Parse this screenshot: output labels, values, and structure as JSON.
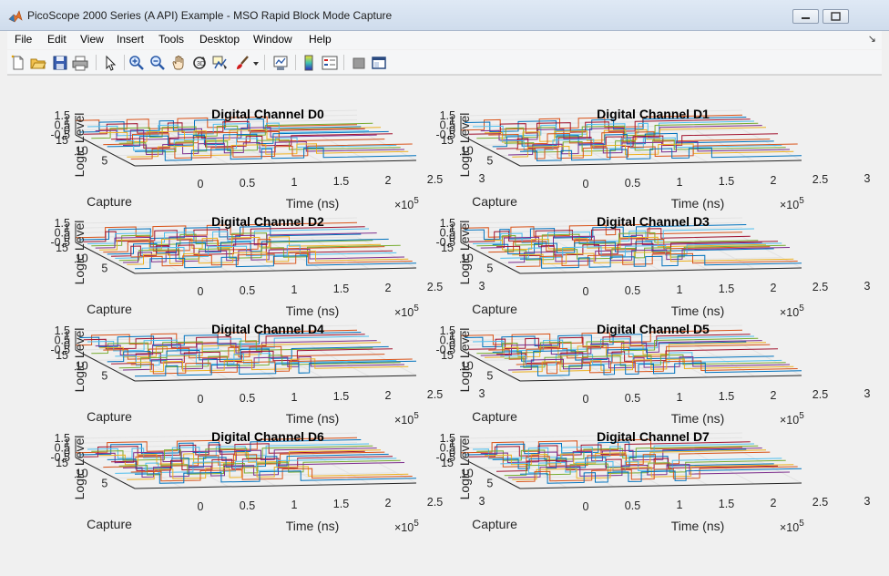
{
  "window": {
    "title": "PicoScope 2000 Series (A API) Example - MSO Rapid Block Mode Capture",
    "controls": [
      "minimize-icon",
      "maximize-icon",
      "close-icon"
    ]
  },
  "menu": [
    "File",
    "Edit",
    "View",
    "Insert",
    "Tools",
    "Desktop",
    "Window",
    "Help"
  ],
  "toolbar": [
    {
      "name": "new-figure-icon"
    },
    {
      "name": "open-file-icon"
    },
    {
      "name": "save-icon"
    },
    {
      "name": "print-icon"
    },
    {
      "name": "edit-plot-arrow-icon"
    },
    {
      "name": "zoom-in-icon"
    },
    {
      "name": "zoom-out-icon"
    },
    {
      "name": "pan-hand-icon"
    },
    {
      "name": "rotate-3d-icon"
    },
    {
      "name": "data-cursor-icon"
    },
    {
      "name": "brush-icon"
    },
    {
      "name": "brush-dropdown-icon"
    },
    {
      "name": "link-plot-icon"
    },
    {
      "name": "insert-colorbar-icon"
    },
    {
      "name": "insert-legend-icon"
    },
    {
      "name": "hide-plot-tools-icon"
    },
    {
      "name": "show-plot-tools-icon"
    }
  ],
  "chart_data": [
    {
      "type": "line",
      "title": "Digital Channel D0",
      "xlabel": "Time (ns)",
      "ylabel": "Capture",
      "zlabel": "Logic Level",
      "x_exponent": "×10",
      "x_exponent_power": "5",
      "xticks": [
        "0",
        "0.5",
        "1",
        "1.5",
        "2",
        "2.5",
        "3"
      ],
      "yticks": [
        "5",
        "10",
        "15"
      ],
      "zticks": [
        "-0.5",
        "0",
        "0.5",
        "1",
        "1.5"
      ],
      "xlim": [
        0,
        3
      ],
      "ylim": [
        0,
        15
      ],
      "zlim": [
        -0.5,
        1.5
      ],
      "grid": true,
      "view": "3d"
    },
    {
      "type": "line",
      "title": "Digital Channel D1",
      "xlabel": "Time (ns)",
      "ylabel": "Capture",
      "zlabel": "Logic Level",
      "x_exponent": "×10",
      "x_exponent_power": "5",
      "xticks": [
        "0",
        "0.5",
        "1",
        "1.5",
        "2",
        "2.5",
        "3"
      ],
      "yticks": [
        "5",
        "10",
        "15"
      ],
      "zticks": [
        "-0.5",
        "0",
        "0.5",
        "1",
        "1.5"
      ],
      "xlim": [
        0,
        3
      ],
      "ylim": [
        0,
        15
      ],
      "zlim": [
        -0.5,
        1.5
      ],
      "grid": true,
      "view": "3d"
    },
    {
      "type": "line",
      "title": "Digital Channel D2",
      "xlabel": "Time (ns)",
      "ylabel": "Capture",
      "zlabel": "Logic Level",
      "x_exponent": "×10",
      "x_exponent_power": "5",
      "xticks": [
        "0",
        "0.5",
        "1",
        "1.5",
        "2",
        "2.5",
        "3"
      ],
      "yticks": [
        "5",
        "10",
        "15"
      ],
      "zticks": [
        "-0.5",
        "0",
        "0.5",
        "1",
        "1.5"
      ],
      "xlim": [
        0,
        3
      ],
      "ylim": [
        0,
        15
      ],
      "zlim": [
        -0.5,
        1.5
      ],
      "grid": true,
      "view": "3d"
    },
    {
      "type": "line",
      "title": "Digital Channel D3",
      "xlabel": "Time (ns)",
      "ylabel": "Capture",
      "zlabel": "Logic Level",
      "x_exponent": "×10",
      "x_exponent_power": "5",
      "xticks": [
        "0",
        "0.5",
        "1",
        "1.5",
        "2",
        "2.5",
        "3"
      ],
      "yticks": [
        "5",
        "10",
        "15"
      ],
      "zticks": [
        "-0.5",
        "0",
        "0.5",
        "1",
        "1.5"
      ],
      "xlim": [
        0,
        3
      ],
      "ylim": [
        0,
        15
      ],
      "zlim": [
        -0.5,
        1.5
      ],
      "grid": true,
      "view": "3d"
    },
    {
      "type": "line",
      "title": "Digital Channel D4",
      "xlabel": "Time (ns)",
      "ylabel": "Capture",
      "zlabel": "Logic Level",
      "x_exponent": "×10",
      "x_exponent_power": "5",
      "xticks": [
        "0",
        "0.5",
        "1",
        "1.5",
        "2",
        "2.5",
        "3"
      ],
      "yticks": [
        "5",
        "10",
        "15"
      ],
      "zticks": [
        "-0.5",
        "0",
        "0.5",
        "1",
        "1.5"
      ],
      "xlim": [
        0,
        3
      ],
      "ylim": [
        0,
        15
      ],
      "zlim": [
        -0.5,
        1.5
      ],
      "grid": true,
      "view": "3d"
    },
    {
      "type": "line",
      "title": "Digital Channel D5",
      "xlabel": "Time (ns)",
      "ylabel": "Capture",
      "zlabel": "Logic Level",
      "x_exponent": "×10",
      "x_exponent_power": "5",
      "xticks": [
        "0",
        "0.5",
        "1",
        "1.5",
        "2",
        "2.5",
        "3"
      ],
      "yticks": [
        "5",
        "10",
        "15"
      ],
      "zticks": [
        "-0.5",
        "0",
        "0.5",
        "1",
        "1.5"
      ],
      "xlim": [
        0,
        3
      ],
      "ylim": [
        0,
        15
      ],
      "zlim": [
        -0.5,
        1.5
      ],
      "grid": true,
      "view": "3d"
    },
    {
      "type": "line",
      "title": "Digital Channel D6",
      "xlabel": "Time (ns)",
      "ylabel": "Capture",
      "zlabel": "Logic Level",
      "x_exponent": "×10",
      "x_exponent_power": "5",
      "xticks": [
        "0",
        "0.5",
        "1",
        "1.5",
        "2",
        "2.5",
        "3"
      ],
      "yticks": [
        "5",
        "10",
        "15"
      ],
      "zticks": [
        "-0.5",
        "0",
        "0.5",
        "1",
        "1.5"
      ],
      "xlim": [
        0,
        3
      ],
      "ylim": [
        0,
        15
      ],
      "zlim": [
        -0.5,
        1.5
      ],
      "grid": true,
      "view": "3d"
    },
    {
      "type": "line",
      "title": "Digital Channel D7",
      "xlabel": "Time (ns)",
      "ylabel": "Capture",
      "zlabel": "Logic Level",
      "x_exponent": "×10",
      "x_exponent_power": "5",
      "xticks": [
        "0",
        "0.5",
        "1",
        "1.5",
        "2",
        "2.5",
        "3"
      ],
      "yticks": [
        "5",
        "10",
        "15"
      ],
      "zticks": [
        "-0.5",
        "0",
        "0.5",
        "1",
        "1.5"
      ],
      "xlim": [
        0,
        3
      ],
      "ylim": [
        0,
        15
      ],
      "zlim": [
        -0.5,
        1.5
      ],
      "grid": true,
      "view": "3d"
    }
  ],
  "series_colors": [
    "#0072bd",
    "#d95319",
    "#edb120",
    "#7e2f8e",
    "#77ac30",
    "#4dbeee",
    "#a2142f"
  ]
}
